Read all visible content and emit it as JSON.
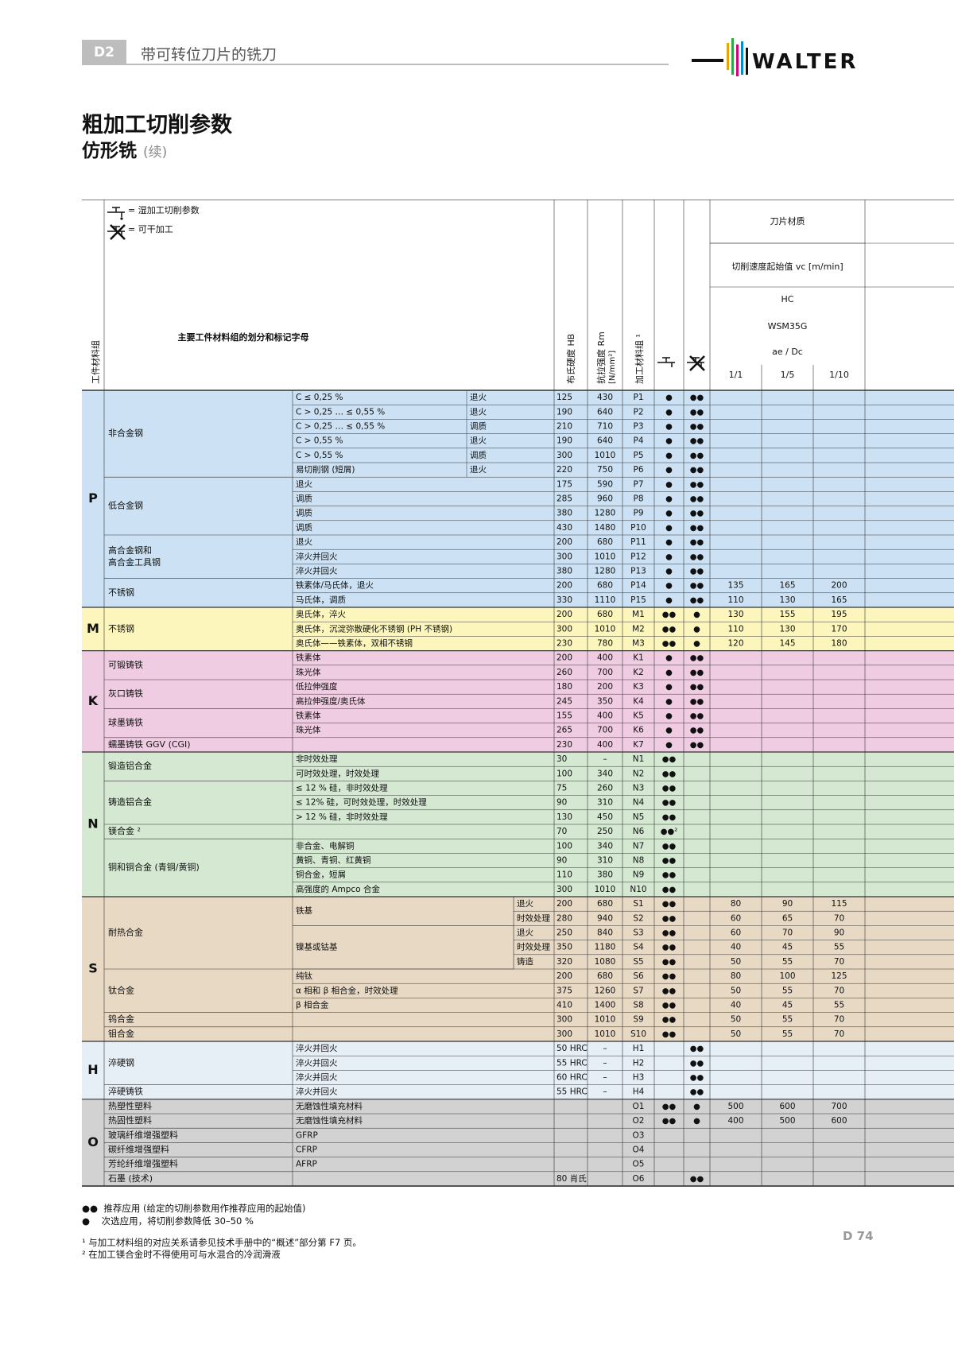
{
  "header": {
    "section": "D2",
    "chapter": "带可转位刀片的铣刀",
    "brand": "WALTER"
  },
  "title": {
    "main": "粗加工切削参数",
    "sub": "仿形铣",
    "sub_note": "(续)"
  },
  "legend": {
    "wet": "= 湿加工切削参数",
    "dry": "= 可干加工"
  },
  "columns": {
    "group": "工件材料组",
    "desc": "主要工件材料组的划分和标记字母",
    "hb": "布氏硬度 HB",
    "rm": "抗拉强度 Rm",
    "rm_unit": "[N/mm²]",
    "mat": "加工材料组 ¹",
    "grade_label": "刀片材质",
    "vc_label": "切削速度起始值 vc [m/min]",
    "hc": "HC",
    "grade": "WSM35G",
    "ratio": "ae / Dc",
    "ratios": [
      "1/1",
      "1/5",
      "1/10"
    ]
  },
  "colors": {
    "P": "#cce2f4",
    "M": "#fcf6bc",
    "K": "#f0cce2",
    "N": "#d4e8d2",
    "S": "#e8d9c4",
    "H": "#e6eef6",
    "O": "#d2d2d2"
  },
  "groups": [
    {
      "letter": "P",
      "start": 0,
      "end": 14,
      "subgroups": [
        {
          "label": [
            "非合金钢"
          ],
          "start": 0,
          "end": 5
        },
        {
          "label": [
            "低合金钢"
          ],
          "start": 6,
          "end": 9
        },
        {
          "label": [
            "高合金钢和",
            "高合金工具钢"
          ],
          "start": 10,
          "end": 12
        },
        {
          "label": [
            "不锈钢"
          ],
          "start": 13,
          "end": 14
        }
      ]
    },
    {
      "letter": "M",
      "start": 15,
      "end": 17,
      "subgroups": [
        {
          "label": [
            "不锈钢"
          ],
          "start": 15,
          "end": 17
        }
      ]
    },
    {
      "letter": "K",
      "start": 18,
      "end": 24,
      "subgroups": [
        {
          "label": [
            "可锻铸铁"
          ],
          "start": 18,
          "end": 19
        },
        {
          "label": [
            "灰口铸铁"
          ],
          "start": 20,
          "end": 21
        },
        {
          "label": [
            "球墨铸铁"
          ],
          "start": 22,
          "end": 23
        },
        {
          "label": [
            "蠕墨铸铁 GGV (CGI)"
          ],
          "start": 24,
          "end": 24
        }
      ]
    },
    {
      "letter": "N",
      "start": 25,
      "end": 34,
      "subgroups": [
        {
          "label": [
            "锻造铝合金"
          ],
          "start": 25,
          "end": 26
        },
        {
          "label": [
            "铸造铝合金"
          ],
          "start": 27,
          "end": 29
        },
        {
          "label": [
            "镁合金 ²"
          ],
          "start": 30,
          "end": 30
        },
        {
          "label": [
            "铜和铜合金 (青铜/黄铜)"
          ],
          "start": 31,
          "end": 34
        }
      ]
    },
    {
      "letter": "S",
      "start": 35,
      "end": 44,
      "subgroups": [
        {
          "label": [
            "耐热合金"
          ],
          "start": 35,
          "end": 39
        },
        {
          "label": [
            "钛合金"
          ],
          "start": 40,
          "end": 42
        },
        {
          "label": [
            "钨合金"
          ],
          "start": 43,
          "end": 43
        },
        {
          "label": [
            "钼合金"
          ],
          "start": 44,
          "end": 44
        }
      ]
    },
    {
      "letter": "H",
      "start": 45,
      "end": 48,
      "subgroups": [
        {
          "label": [
            "淬硬钢"
          ],
          "start": 45,
          "end": 47
        },
        {
          "label": [
            "淬硬铸铁"
          ],
          "start": 48,
          "end": 48
        }
      ]
    },
    {
      "letter": "O",
      "start": 49,
      "end": 54,
      "subgroups": [
        {
          "label": [
            "热塑性塑料"
          ],
          "start": 49,
          "end": 49
        },
        {
          "label": [
            "热固性塑料"
          ],
          "start": 50,
          "end": 50
        },
        {
          "label": [
            "玻璃纤维增强塑料"
          ],
          "start": 51,
          "end": 51
        },
        {
          "label": [
            "碳纤维增强塑料"
          ],
          "start": 52,
          "end": 52
        },
        {
          "label": [
            "芳纶纤维增强塑料"
          ],
          "start": 53,
          "end": 53
        },
        {
          "label": [
            "石墨 (技术)"
          ],
          "start": 54,
          "end": 54
        }
      ]
    }
  ],
  "merged_descs": [
    {
      "label": "铁基",
      "start": 35,
      "end": 36
    },
    {
      "label": "镍基或钴基",
      "start": 37,
      "end": 39
    }
  ],
  "rows": [
    {
      "d1": "C ≤ 0,25 %",
      "d2": "退火",
      "hb": "125",
      "rm": "430",
      "code": "P1",
      "wet": "●",
      "dry": "●●",
      "v": [
        "",
        "",
        ""
      ]
    },
    {
      "d1": "C > 0,25 … ≤ 0,55 %",
      "d2": "退火",
      "hb": "190",
      "rm": "640",
      "code": "P2",
      "wet": "●",
      "dry": "●●",
      "v": [
        "",
        "",
        ""
      ]
    },
    {
      "d1": "C > 0,25 … ≤ 0,55 %",
      "d2": "调质",
      "hb": "210",
      "rm": "710",
      "code": "P3",
      "wet": "●",
      "dry": "●●",
      "v": [
        "",
        "",
        ""
      ]
    },
    {
      "d1": "C > 0,55 %",
      "d2": "退火",
      "hb": "190",
      "rm": "640",
      "code": "P4",
      "wet": "●",
      "dry": "●●",
      "v": [
        "",
        "",
        ""
      ]
    },
    {
      "d1": "C > 0,55 %",
      "d2": "调质",
      "hb": "300",
      "rm": "1010",
      "code": "P5",
      "wet": "●",
      "dry": "●●",
      "v": [
        "",
        "",
        ""
      ]
    },
    {
      "d1": "易切削钢 (短屑)",
      "d2": "退火",
      "hb": "220",
      "rm": "750",
      "code": "P6",
      "wet": "●",
      "dry": "●●",
      "v": [
        "",
        "",
        ""
      ]
    },
    {
      "d1": "退火",
      "d2": "",
      "hb": "175",
      "rm": "590",
      "code": "P7",
      "wet": "●",
      "dry": "●●",
      "v": [
        "",
        "",
        ""
      ]
    },
    {
      "d1": "调质",
      "d2": "",
      "hb": "285",
      "rm": "960",
      "code": "P8",
      "wet": "●",
      "dry": "●●",
      "v": [
        "",
        "",
        ""
      ]
    },
    {
      "d1": "调质",
      "d2": "",
      "hb": "380",
      "rm": "1280",
      "code": "P9",
      "wet": "●",
      "dry": "●●",
      "v": [
        "",
        "",
        ""
      ]
    },
    {
      "d1": "调质",
      "d2": "",
      "hb": "430",
      "rm": "1480",
      "code": "P10",
      "wet": "●",
      "dry": "●●",
      "v": [
        "",
        "",
        ""
      ]
    },
    {
      "d1": "退火",
      "d2": "",
      "hb": "200",
      "rm": "680",
      "code": "P11",
      "wet": "●",
      "dry": "●●",
      "v": [
        "",
        "",
        ""
      ]
    },
    {
      "d1": "淬火并回火",
      "d2": "",
      "hb": "300",
      "rm": "1010",
      "code": "P12",
      "wet": "●",
      "dry": "●●",
      "v": [
        "",
        "",
        ""
      ]
    },
    {
      "d1": "淬火并回火",
      "d2": "",
      "hb": "380",
      "rm": "1280",
      "code": "P13",
      "wet": "●",
      "dry": "●●",
      "v": [
        "",
        "",
        ""
      ]
    },
    {
      "d1": "铁素体/马氏体，退火",
      "d2": "",
      "hb": "200",
      "rm": "680",
      "code": "P14",
      "wet": "●",
      "dry": "●●",
      "v": [
        "135",
        "165",
        "200"
      ]
    },
    {
      "d1": "马氏体，调质",
      "d2": "",
      "hb": "330",
      "rm": "1110",
      "code": "P15",
      "wet": "●",
      "dry": "●●",
      "v": [
        "110",
        "130",
        "165"
      ]
    },
    {
      "d1": "奥氏体，淬火",
      "d2": "",
      "hb": "200",
      "rm": "680",
      "code": "M1",
      "wet": "●●",
      "dry": "●",
      "v": [
        "130",
        "155",
        "195"
      ]
    },
    {
      "d1": "奥氏体，沉淀弥散硬化不锈钢 (PH 不锈钢)",
      "d2": "",
      "hb": "300",
      "rm": "1010",
      "code": "M2",
      "wet": "●●",
      "dry": "●",
      "v": [
        "110",
        "130",
        "170"
      ]
    },
    {
      "d1": "奥氏体——铁素体，双相不锈钢",
      "d2": "",
      "hb": "230",
      "rm": "780",
      "code": "M3",
      "wet": "●●",
      "dry": "●",
      "v": [
        "120",
        "145",
        "180"
      ]
    },
    {
      "d1": "铁素体",
      "d2": "",
      "hb": "200",
      "rm": "400",
      "code": "K1",
      "wet": "●",
      "dry": "●●",
      "v": [
        "",
        "",
        ""
      ]
    },
    {
      "d1": "珠光体",
      "d2": "",
      "hb": "260",
      "rm": "700",
      "code": "K2",
      "wet": "●",
      "dry": "●●",
      "v": [
        "",
        "",
        ""
      ]
    },
    {
      "d1": "低拉伸强度",
      "d2": "",
      "hb": "180",
      "rm": "200",
      "code": "K3",
      "wet": "●",
      "dry": "●●",
      "v": [
        "",
        "",
        ""
      ]
    },
    {
      "d1": "高拉伸强度/奥氏体",
      "d2": "",
      "hb": "245",
      "rm": "350",
      "code": "K4",
      "wet": "●",
      "dry": "●●",
      "v": [
        "",
        "",
        ""
      ]
    },
    {
      "d1": "铁素体",
      "d2": "",
      "hb": "155",
      "rm": "400",
      "code": "K5",
      "wet": "●",
      "dry": "●●",
      "v": [
        "",
        "",
        ""
      ]
    },
    {
      "d1": "珠光体",
      "d2": "",
      "hb": "265",
      "rm": "700",
      "code": "K6",
      "wet": "●",
      "dry": "●●",
      "v": [
        "",
        "",
        ""
      ]
    },
    {
      "d1": "",
      "d2": "",
      "hb": "230",
      "rm": "400",
      "code": "K7",
      "wet": "●",
      "dry": "●●",
      "v": [
        "",
        "",
        ""
      ]
    },
    {
      "d1": "非时效处理",
      "d2": "",
      "hb": "30",
      "rm": "–",
      "code": "N1",
      "wet": "●●",
      "dry": "",
      "v": [
        "",
        "",
        ""
      ]
    },
    {
      "d1": "可时效处理，时效处理",
      "d2": "",
      "hb": "100",
      "rm": "340",
      "code": "N2",
      "wet": "●●",
      "dry": "",
      "v": [
        "",
        "",
        ""
      ]
    },
    {
      "d1": "≤ 12 % 硅，非时效处理",
      "d2": "",
      "hb": "75",
      "rm": "260",
      "code": "N3",
      "wet": "●●",
      "dry": "",
      "v": [
        "",
        "",
        ""
      ]
    },
    {
      "d1": "≤ 12% 硅，可时效处理，时效处理",
      "d2": "",
      "hb": "90",
      "rm": "310",
      "code": "N4",
      "wet": "●●",
      "dry": "",
      "v": [
        "",
        "",
        ""
      ]
    },
    {
      "d1": "> 12 % 硅，非时效处理",
      "d2": "",
      "hb": "130",
      "rm": "450",
      "code": "N5",
      "wet": "●●",
      "dry": "",
      "v": [
        "",
        "",
        ""
      ]
    },
    {
      "d1": "",
      "d2": "",
      "hb": "70",
      "rm": "250",
      "code": "N6",
      "wet": "●●²",
      "dry": "",
      "v": [
        "",
        "",
        ""
      ]
    },
    {
      "d1": "非合金、电解铜",
      "d2": "",
      "hb": "100",
      "rm": "340",
      "code": "N7",
      "wet": "●●",
      "dry": "",
      "v": [
        "",
        "",
        ""
      ]
    },
    {
      "d1": "黄铜、青铜、红黄铜",
      "d2": "",
      "hb": "90",
      "rm": "310",
      "code": "N8",
      "wet": "●●",
      "dry": "",
      "v": [
        "",
        "",
        ""
      ]
    },
    {
      "d1": "铜合金，短屑",
      "d2": "",
      "hb": "110",
      "rm": "380",
      "code": "N9",
      "wet": "●●",
      "dry": "",
      "v": [
        "",
        "",
        ""
      ]
    },
    {
      "d1": "高强度的 Ampco 合金",
      "d2": "",
      "hb": "300",
      "rm": "1010",
      "code": "N10",
      "wet": "●●",
      "dry": "",
      "v": [
        "",
        "",
        ""
      ]
    },
    {
      "d1": "",
      "d2": "退火",
      "hb": "200",
      "rm": "680",
      "code": "S1",
      "wet": "●●",
      "dry": "",
      "v": [
        "80",
        "90",
        "115"
      ]
    },
    {
      "d1": "",
      "d2": "时效处理",
      "hb": "280",
      "rm": "940",
      "code": "S2",
      "wet": "●●",
      "dry": "",
      "v": [
        "60",
        "65",
        "70"
      ]
    },
    {
      "d1": "",
      "d2": "退火",
      "hb": "250",
      "rm": "840",
      "code": "S3",
      "wet": "●●",
      "dry": "",
      "v": [
        "60",
        "70",
        "90"
      ]
    },
    {
      "d1": "",
      "d2": "时效处理",
      "hb": "350",
      "rm": "1180",
      "code": "S4",
      "wet": "●●",
      "dry": "",
      "v": [
        "40",
        "45",
        "55"
      ]
    },
    {
      "d1": "",
      "d2": "铸造",
      "hb": "320",
      "rm": "1080",
      "code": "S5",
      "wet": "●●",
      "dry": "",
      "v": [
        "50",
        "55",
        "70"
      ]
    },
    {
      "d1": "纯钛",
      "d2": "",
      "hb": "200",
      "rm": "680",
      "code": "S6",
      "wet": "●●",
      "dry": "",
      "v": [
        "80",
        "100",
        "125"
      ]
    },
    {
      "d1": "α 相和 β 相合金，时效处理",
      "d2": "",
      "hb": "375",
      "rm": "1260",
      "code": "S7",
      "wet": "●●",
      "dry": "",
      "v": [
        "50",
        "55",
        "70"
      ]
    },
    {
      "d1": "β 相合金",
      "d2": "",
      "hb": "410",
      "rm": "1400",
      "code": "S8",
      "wet": "●●",
      "dry": "",
      "v": [
        "40",
        "45",
        "55"
      ]
    },
    {
      "d1": "",
      "d2": "",
      "hb": "300",
      "rm": "1010",
      "code": "S9",
      "wet": "●●",
      "dry": "",
      "v": [
        "50",
        "55",
        "70"
      ]
    },
    {
      "d1": "",
      "d2": "",
      "hb": "300",
      "rm": "1010",
      "code": "S10",
      "wet": "●●",
      "dry": "",
      "v": [
        "50",
        "55",
        "70"
      ]
    },
    {
      "d1": "淬火并回火",
      "d2": "",
      "hb": "50 HRC",
      "rm": "–",
      "code": "H1",
      "wet": "",
      "dry": "●●",
      "v": [
        "",
        "",
        ""
      ]
    },
    {
      "d1": "淬火并回火",
      "d2": "",
      "hb": "55 HRC",
      "rm": "–",
      "code": "H2",
      "wet": "",
      "dry": "●●",
      "v": [
        "",
        "",
        ""
      ]
    },
    {
      "d1": "淬火并回火",
      "d2": "",
      "hb": "60 HRC",
      "rm": "–",
      "code": "H3",
      "wet": "",
      "dry": "●●",
      "v": [
        "",
        "",
        ""
      ]
    },
    {
      "d1": "淬火并回火",
      "d2": "",
      "hb": "55 HRC",
      "rm": "–",
      "code": "H4",
      "wet": "",
      "dry": "●●",
      "v": [
        "",
        "",
        ""
      ]
    },
    {
      "d1": "无磨蚀性填充材料",
      "d2": "",
      "hb": "",
      "rm": "",
      "code": "O1",
      "wet": "●●",
      "dry": "●",
      "v": [
        "500",
        "600",
        "700"
      ]
    },
    {
      "d1": "无磨蚀性填充材料",
      "d2": "",
      "hb": "",
      "rm": "",
      "code": "O2",
      "wet": "●●",
      "dry": "●",
      "v": [
        "400",
        "500",
        "600"
      ]
    },
    {
      "d1": "GFRP",
      "d2": "",
      "hb": "",
      "rm": "",
      "code": "O3",
      "wet": "",
      "dry": "",
      "v": [
        "",
        "",
        ""
      ]
    },
    {
      "d1": "CFRP",
      "d2": "",
      "hb": "",
      "rm": "",
      "code": "O4",
      "wet": "",
      "dry": "",
      "v": [
        "",
        "",
        ""
      ]
    },
    {
      "d1": "AFRP",
      "d2": "",
      "hb": "",
      "rm": "",
      "code": "O5",
      "wet": "",
      "dry": "",
      "v": [
        "",
        "",
        ""
      ]
    },
    {
      "d1": "",
      "d2": "",
      "hb": "80 肖氏",
      "rm": "",
      "code": "O6",
      "wet": "",
      "dry": "●●",
      "v": [
        "",
        "",
        ""
      ]
    }
  ],
  "footnotes": {
    "rec_sym": "●●",
    "rec_text": "推荐应用 (给定的切削参数用作推荐应用的起始值)",
    "alt_sym": "●",
    "alt_text": "次选应用，将切削参数降低 30–50 %",
    "note1": "¹ 与加工材料组的对应关系请参见技术手册中的“概述”部分第 F7 页。",
    "note2": "² 在加工镁合金时不得使用可与水混合的冷润滑液"
  },
  "page": "D 74"
}
